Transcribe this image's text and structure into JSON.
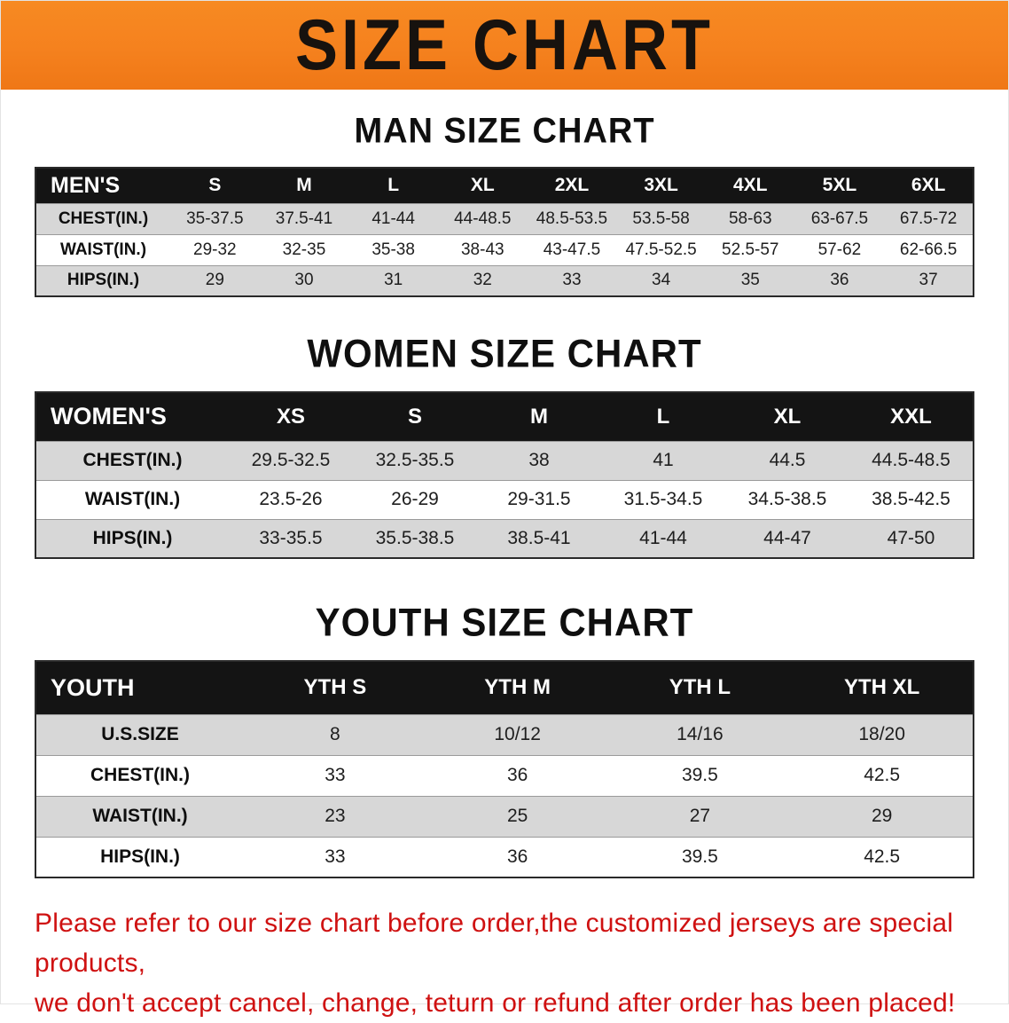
{
  "banner": {
    "title": "SIZE CHART",
    "bg_color": "#f5811e",
    "text_color": "#17120e"
  },
  "sections": [
    {
      "heading": "MAN SIZE CHART",
      "table": {
        "label_header": "MEN'S",
        "size_headers": [
          "S",
          "M",
          "L",
          "XL",
          "2XL",
          "3XL",
          "4XL",
          "5XL",
          "6XL"
        ],
        "rows": [
          {
            "label": "CHEST(IN.)",
            "values": [
              "35-37.5",
              "37.5-41",
              "41-44",
              "44-48.5",
              "48.5-53.5",
              "53.5-58",
              "58-63",
              "63-67.5",
              "67.5-72"
            ]
          },
          {
            "label": "WAIST(IN.)",
            "values": [
              "29-32",
              "32-35",
              "35-38",
              "38-43",
              "43-47.5",
              "47.5-52.5",
              "52.5-57",
              "57-62",
              "62-66.5"
            ]
          },
          {
            "label": "HIPS(IN.)",
            "values": [
              "29",
              "30",
              "31",
              "32",
              "33",
              "34",
              "35",
              "36",
              "37"
            ]
          }
        ]
      }
    },
    {
      "heading": "WOMEN SIZE CHART",
      "table": {
        "label_header": "WOMEN'S",
        "size_headers": [
          "XS",
          "S",
          "M",
          "L",
          "XL",
          "XXL"
        ],
        "rows": [
          {
            "label": "CHEST(IN.)",
            "values": [
              "29.5-32.5",
              "32.5-35.5",
              "38",
              "41",
              "44.5",
              "44.5-48.5"
            ]
          },
          {
            "label": "WAIST(IN.)",
            "values": [
              "23.5-26",
              "26-29",
              "29-31.5",
              "31.5-34.5",
              "34.5-38.5",
              "38.5-42.5"
            ]
          },
          {
            "label": "HIPS(IN.)",
            "values": [
              "33-35.5",
              "35.5-38.5",
              "38.5-41",
              "41-44",
              "44-47",
              "47-50"
            ]
          }
        ]
      }
    },
    {
      "heading": "YOUTH SIZE CHART",
      "table": {
        "label_header": "YOUTH",
        "size_headers": [
          "YTH S",
          "YTH M",
          "YTH L",
          "YTH XL"
        ],
        "rows": [
          {
            "label": "U.S.SIZE",
            "values": [
              "8",
              "10/12",
              "14/16",
              "18/20"
            ]
          },
          {
            "label": "CHEST(IN.)",
            "values": [
              "33",
              "36",
              "39.5",
              "42.5"
            ]
          },
          {
            "label": "WAIST(IN.)",
            "values": [
              "23",
              "25",
              "27",
              "29"
            ]
          },
          {
            "label": "HIPS(IN.)",
            "values": [
              "33",
              "36",
              "39.5",
              "42.5"
            ]
          }
        ]
      }
    }
  ],
  "footer_note": {
    "line1": "Please refer to our size chart before order,the customized jerseys are special products,",
    "line2": "we don't accept cancel, change, teturn or refund after order has been placed!",
    "color": "#cf1111"
  }
}
